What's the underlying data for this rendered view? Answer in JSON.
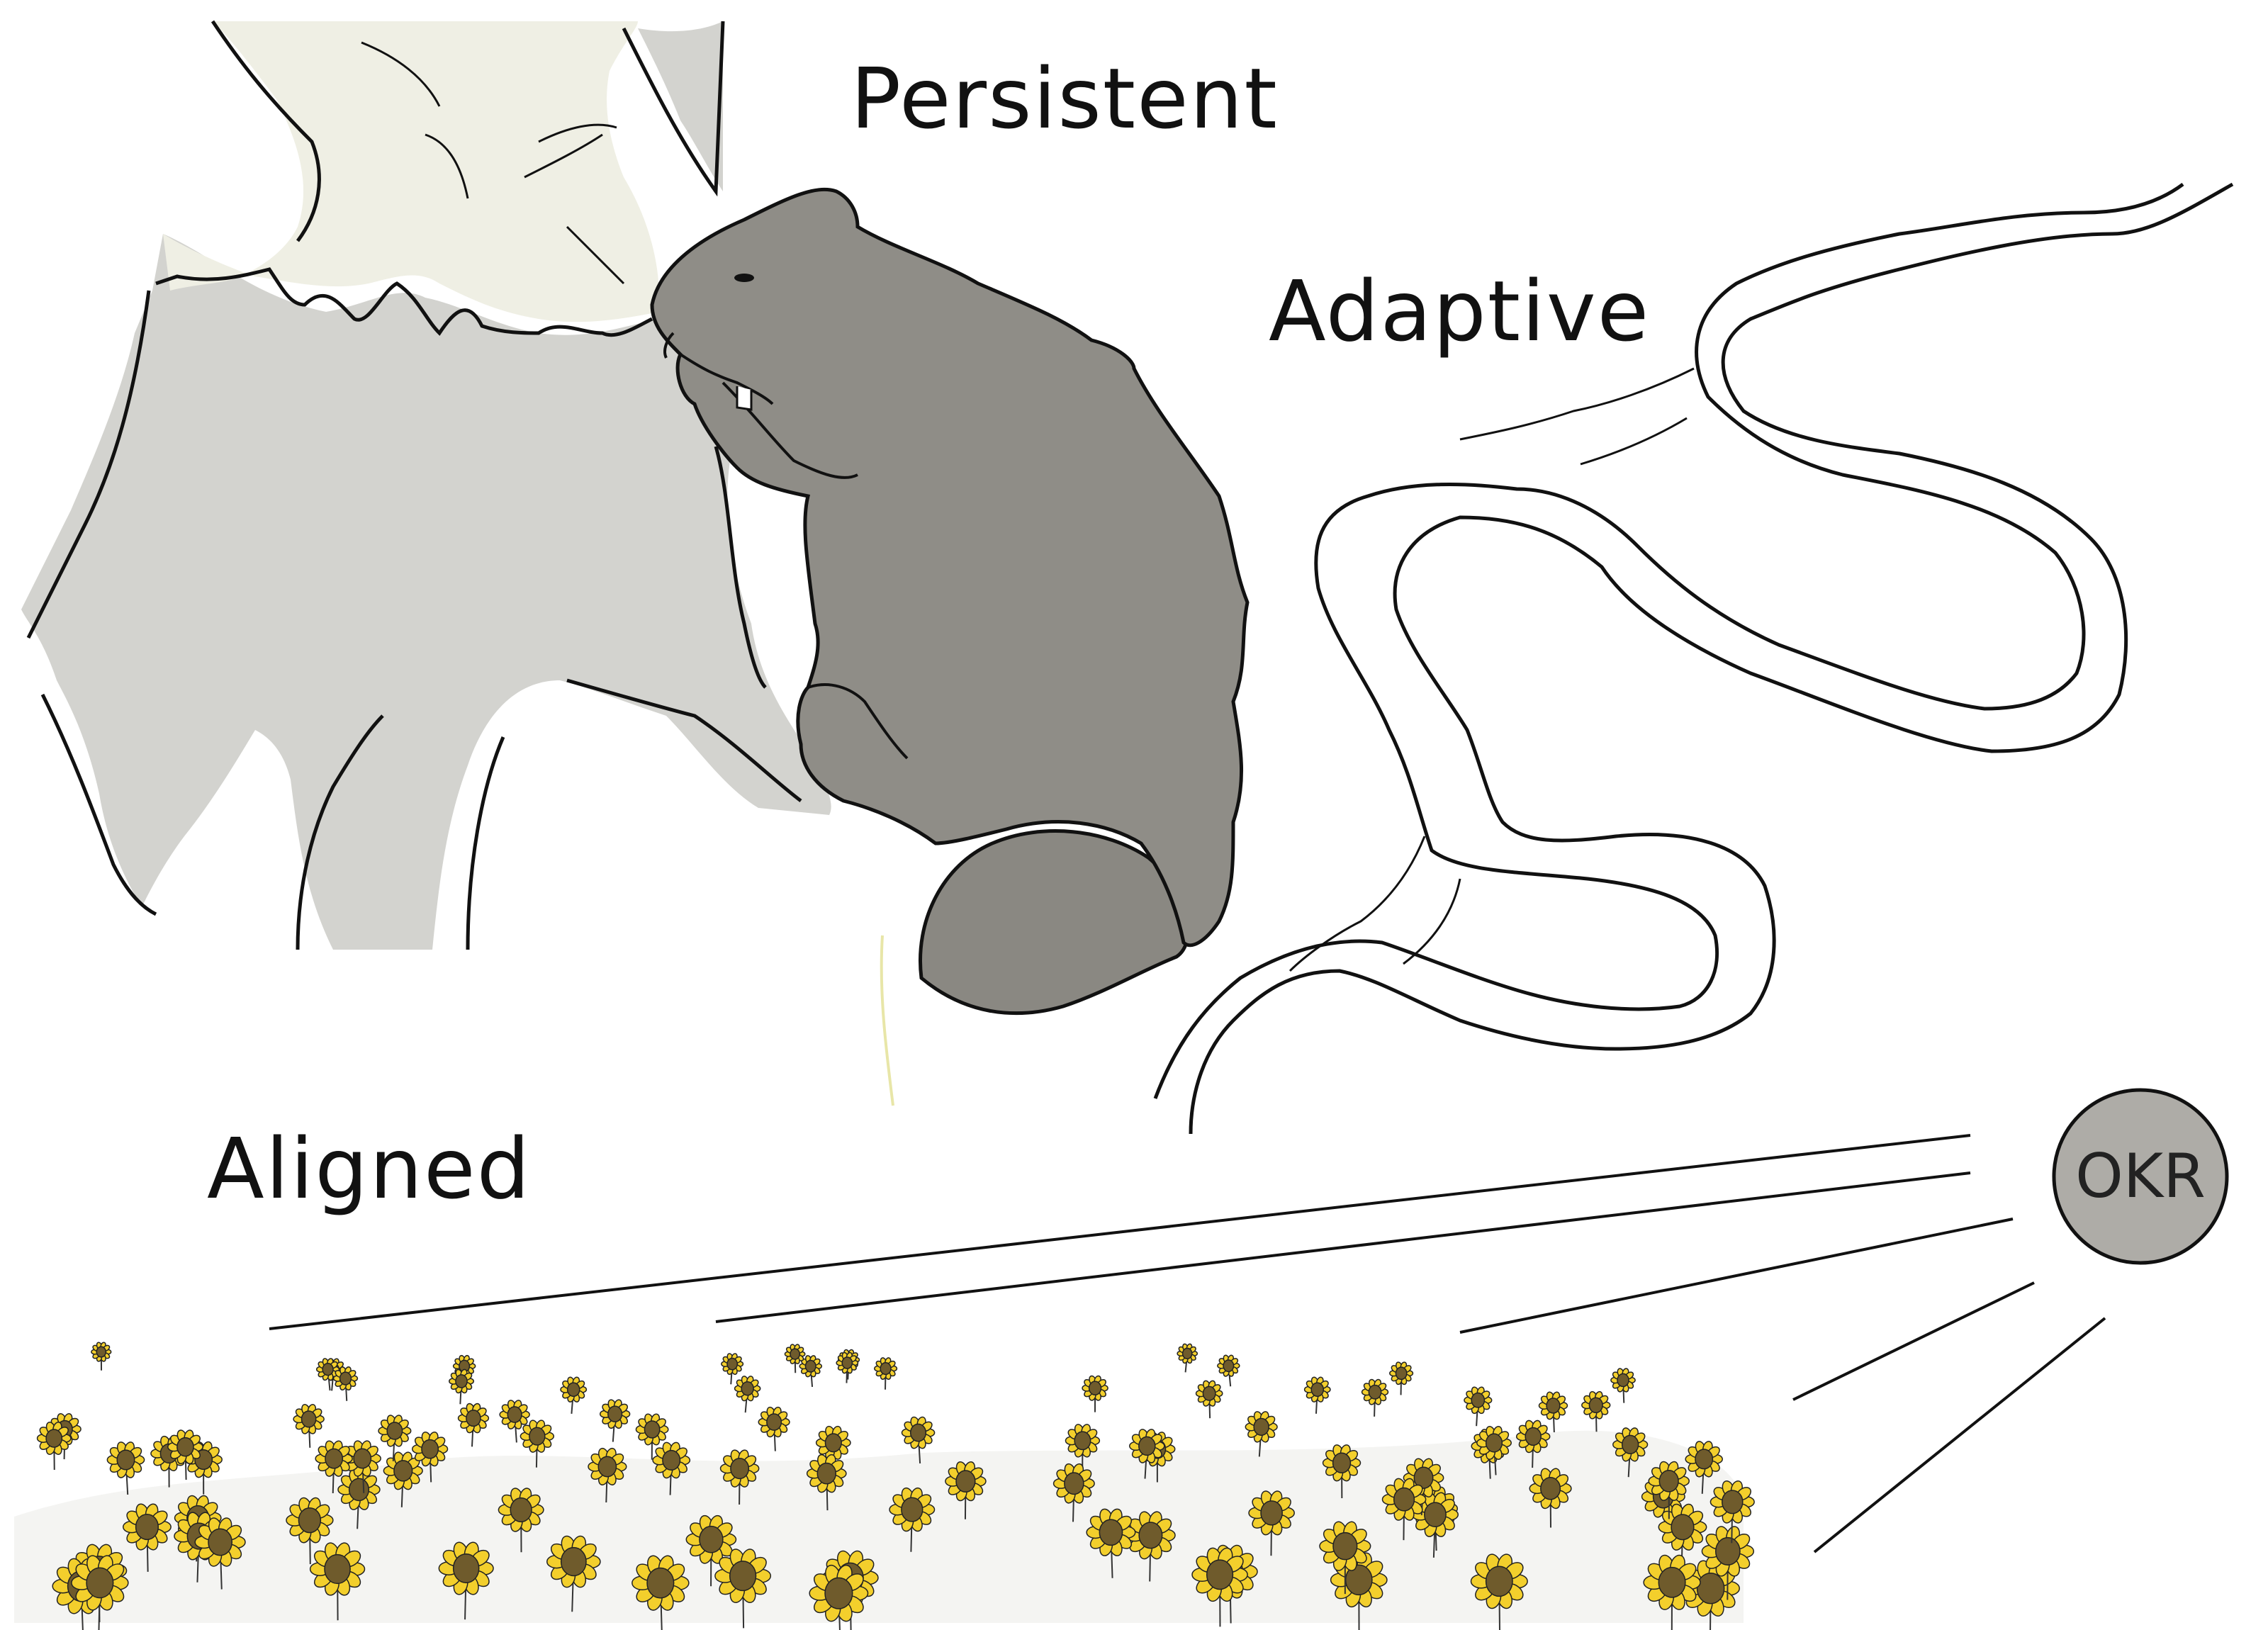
{
  "labels": {
    "persistent": "Persistent",
    "adaptive": "Adaptive",
    "aligned": "Aligned",
    "okr": "OKR"
  },
  "colors": {
    "background": "#ffffff",
    "rock_light": "#efefe4",
    "rock_gray": "#d3d3cf",
    "beaver": "#8b8983",
    "okr_circle": "#aeaca7",
    "sunflower_petal": "#f3cf2c",
    "sunflower_center": "#6f5b2c",
    "stroke": "#111111"
  },
  "icons": [
    "beaver-illustration",
    "rock-illustration",
    "winding-river-illustration",
    "sunflower-field-illustration",
    "sun-rays-illustration"
  ]
}
